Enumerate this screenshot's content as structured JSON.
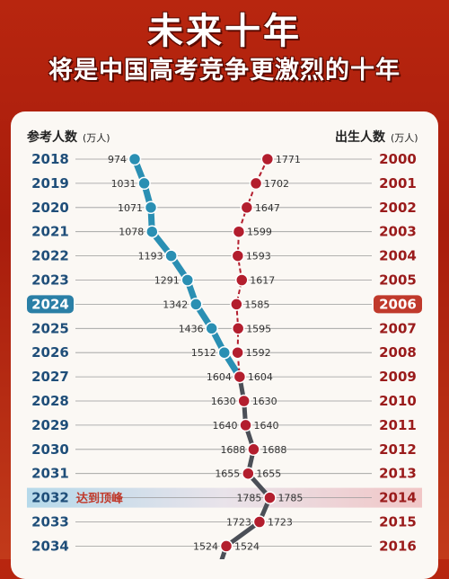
{
  "header": {
    "title": "未来十年",
    "subtitle": "将是中国高考竞争更激烈的十年"
  },
  "colors": {
    "exam_line": "#2a8fb3",
    "birth_line": "#b31e2e",
    "merged_line": "#4b4f57",
    "highlight_left": "#2a7fa6",
    "highlight_right": "#c0392b"
  },
  "chart_data": {
    "type": "line",
    "left_axis_label": "参考人数",
    "left_axis_unit": "(万人)",
    "right_axis_label": "出生人数",
    "right_axis_unit": "(万人)",
    "highlighted_year": "2024",
    "peak_year": "2032",
    "peak_label": "达到顶峰",
    "rows": [
      {
        "exam_year": "2018",
        "exam": 974,
        "birth_year": "2000",
        "birth": 1771
      },
      {
        "exam_year": "2019",
        "exam": 1031,
        "birth_year": "2001",
        "birth": 1702
      },
      {
        "exam_year": "2020",
        "exam": 1071,
        "birth_year": "2002",
        "birth": 1647
      },
      {
        "exam_year": "2021",
        "exam": 1078,
        "birth_year": "2003",
        "birth": 1599
      },
      {
        "exam_year": "2022",
        "exam": 1193,
        "birth_year": "2004",
        "birth": 1593
      },
      {
        "exam_year": "2023",
        "exam": 1291,
        "birth_year": "2005",
        "birth": 1617
      },
      {
        "exam_year": "2024",
        "exam": 1342,
        "birth_year": "2006",
        "birth": 1585
      },
      {
        "exam_year": "2025",
        "exam": 1436,
        "birth_year": "2007",
        "birth": 1595
      },
      {
        "exam_year": "2026",
        "exam": 1512,
        "birth_year": "2008",
        "birth": 1592
      },
      {
        "exam_year": "2027",
        "exam": 1604,
        "birth_year": "2009",
        "birth": 1604
      },
      {
        "exam_year": "2028",
        "exam": 1630,
        "birth_year": "2010",
        "birth": 1630
      },
      {
        "exam_year": "2029",
        "exam": 1640,
        "birth_year": "2011",
        "birth": 1640
      },
      {
        "exam_year": "2030",
        "exam": 1688,
        "birth_year": "2012",
        "birth": 1688
      },
      {
        "exam_year": "2031",
        "exam": 1655,
        "birth_year": "2013",
        "birth": 1655
      },
      {
        "exam_year": "2032",
        "exam": 1785,
        "birth_year": "2014",
        "birth": 1785
      },
      {
        "exam_year": "2033",
        "exam": 1723,
        "birth_year": "2015",
        "birth": 1723
      },
      {
        "exam_year": "2034",
        "exam": 1524,
        "birth_year": "2016",
        "birth": 1524
      }
    ]
  }
}
